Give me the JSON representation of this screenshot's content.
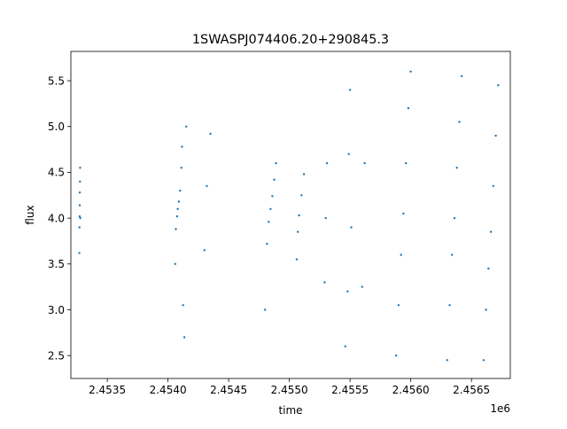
{
  "chart_data": {
    "type": "scatter",
    "title": "1SWASPJ074406.20+290845.3",
    "xlabel": "time",
    "ylabel": "flux",
    "x_offset_label": "1e6",
    "x_unit_scale": 1000000,
    "xlim": [
      2453200,
      2456820
    ],
    "ylim": [
      2.25,
      5.82
    ],
    "x_ticks": [
      2453500,
      2454000,
      2454500,
      2455000,
      2455500,
      2456000,
      2456500
    ],
    "x_tick_labels": [
      "2.4535",
      "2.4540",
      "2.4545",
      "2.4550",
      "2.4555",
      "2.4560",
      "2.4565"
    ],
    "y_ticks": [
      2.5,
      3.0,
      3.5,
      4.0,
      4.5,
      5.0,
      5.5
    ],
    "y_tick_labels": [
      "2.5",
      "3.0",
      "3.5",
      "4.0",
      "4.5",
      "5.0",
      "5.5"
    ],
    "grid": false,
    "legend": "none",
    "marker_color": "#1f77b4",
    "series": [
      {
        "x": [
          2453270,
          2453271,
          2453272,
          2453273,
          2453274,
          2453275,
          2453276,
          2453277,
          2454060,
          2454065,
          2454075,
          2454080,
          2454090,
          2454100,
          2454110,
          2454115,
          2454125,
          2454135,
          2454150,
          2454300,
          2454320,
          2454350,
          2454800,
          2454815,
          2454830,
          2454845,
          2454860,
          2454875,
          2454890,
          2455060,
          2455070,
          2455080,
          2455100,
          2455120,
          2455290,
          2455300,
          2455310,
          2455460,
          2455480,
          2455490,
          2455500,
          2455510,
          2455600,
          2455620,
          2455880,
          2455900,
          2455920,
          2455940,
          2455960,
          2455980,
          2456000,
          2456300,
          2456320,
          2456340,
          2456360,
          2456380,
          2456400,
          2456420,
          2456600,
          2456620,
          2456640,
          2456660,
          2456680,
          2456700,
          2456720
        ],
        "y": [
          3.62,
          3.9,
          4.02,
          4.14,
          4.28,
          4.4,
          4.55,
          4.0,
          3.5,
          3.88,
          4.02,
          4.1,
          4.18,
          4.3,
          4.55,
          4.78,
          3.05,
          2.7,
          5.0,
          3.65,
          4.35,
          4.92,
          3.0,
          3.72,
          3.96,
          4.1,
          4.24,
          4.42,
          4.6,
          3.55,
          3.85,
          4.03,
          4.25,
          4.48,
          3.3,
          4.0,
          4.6,
          2.6,
          3.2,
          4.7,
          5.4,
          3.9,
          3.25,
          4.6,
          2.5,
          3.05,
          3.6,
          4.05,
          4.6,
          5.2,
          5.6,
          2.45,
          3.05,
          3.6,
          4.0,
          4.55,
          5.05,
          5.55,
          2.45,
          3.0,
          3.45,
          3.85,
          4.35,
          4.9,
          5.45
        ]
      }
    ]
  }
}
